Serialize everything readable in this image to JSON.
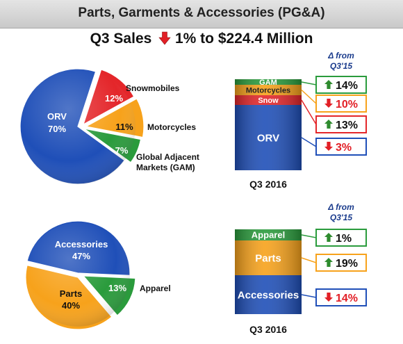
{
  "header": {
    "title": "Parts, Garments & Accessories (PG&A)"
  },
  "subtitle": {
    "prefix": "Q3 Sales",
    "change": "1% to $224.4 Million",
    "direction": "down"
  },
  "colors": {
    "blue": "#1f4fb8",
    "red": "#e4262a",
    "orange": "#f7a21b",
    "green": "#2a9b3c",
    "arrow_up": "#2e8b2e",
    "arrow_down": "#e21f26"
  },
  "chart_data": [
    {
      "type": "pie",
      "slices": [
        {
          "label": "ORV",
          "value": 70,
          "value_label": "70%",
          "color": "#1f4fb8"
        },
        {
          "label": "Snowmobiles",
          "value": 12,
          "value_label": "12%",
          "color": "#e4262a"
        },
        {
          "label": "Motorcycles",
          "value": 11,
          "value_label": "11%",
          "color": "#f7a21b"
        },
        {
          "label": "Global Adjacent Markets (GAM)",
          "label_lines": [
            "Global Adjacent",
            "Markets (GAM)"
          ],
          "value": 7,
          "value_label": "7%",
          "color": "#2a9b3c"
        }
      ]
    },
    {
      "type": "bar",
      "stacked": true,
      "category": "Q3 2016",
      "delta_header": [
        "Δ from",
        "Q3'15"
      ],
      "segments": [
        {
          "label": "ORV",
          "share": 70,
          "color": "#1f4fb8",
          "delta": "3%",
          "direction": "down"
        },
        {
          "label": "Snow",
          "share": 12,
          "color": "#e4262a",
          "delta": "13%",
          "direction": "up"
        },
        {
          "label": "Motorcycles",
          "share": 11,
          "color": "#f7a21b",
          "delta": "10%",
          "direction": "down"
        },
        {
          "label": "GAM",
          "share": 7,
          "color": "#2a9b3c",
          "delta": "14%",
          "direction": "up"
        }
      ]
    },
    {
      "type": "pie",
      "slices": [
        {
          "label": "Accessories",
          "value": 47,
          "value_label": "47%",
          "color": "#1f4fb8"
        },
        {
          "label": "Apparel",
          "value": 13,
          "value_label": "13%",
          "color": "#2a9b3c"
        },
        {
          "label": "Parts",
          "value": 40,
          "value_label": "40%",
          "color": "#f7a21b"
        }
      ]
    },
    {
      "type": "bar",
      "stacked": true,
      "category": "Q3 2016",
      "delta_header": [
        "Δ from",
        "Q3'15"
      ],
      "segments": [
        {
          "label": "Accessories",
          "share": 47,
          "color": "#1f4fb8",
          "delta": "14%",
          "direction": "down"
        },
        {
          "label": "Parts",
          "share": 40,
          "color": "#f7a21b",
          "delta": "19%",
          "direction": "up"
        },
        {
          "label": "Apparel",
          "share": 13,
          "color": "#2a9b3c",
          "delta": "1%",
          "direction": "up"
        }
      ]
    }
  ]
}
